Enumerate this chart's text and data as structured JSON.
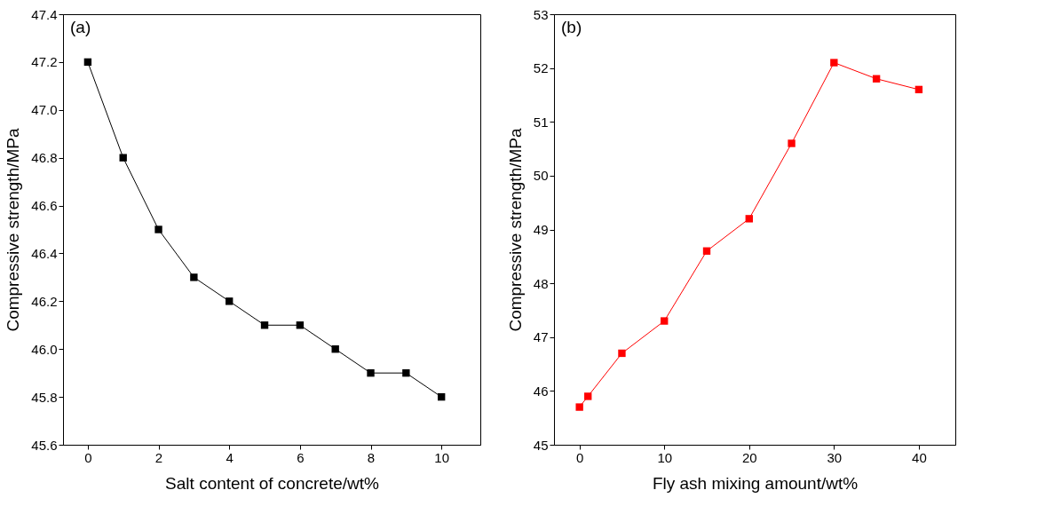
{
  "chart_data": [
    {
      "type": "line",
      "annotations": [
        "(a)"
      ],
      "xlabel": "Salt content of concrete/wt%",
      "ylabel": "Compressive strength/MPa",
      "x": [
        0,
        1,
        2,
        3,
        4,
        5,
        6,
        7,
        8,
        9,
        10
      ],
      "series": [
        {
          "color": "#000000",
          "values": [
            47.2,
            46.8,
            46.5,
            46.3,
            46.2,
            46.1,
            46.1,
            46.0,
            45.9,
            45.9,
            45.8
          ]
        }
      ],
      "xlim": [
        -0.7,
        11.1
      ],
      "xticks": [
        0,
        2,
        4,
        6,
        8,
        10
      ],
      "ylim": [
        45.6,
        47.4
      ],
      "yticks": [
        45.6,
        45.8,
        {
          "value": 46,
          "label": "46.0"
        },
        46.2,
        46.4,
        46.6,
        46.8,
        {
          "value": 47,
          "label": "47.0"
        },
        47.2,
        47.4
      ],
      "marker": "square",
      "line_style": "solid",
      "grid": false
    },
    {
      "type": "line",
      "annotations": [
        "(b)"
      ],
      "xlabel": "Fly ash mixing amount/wt%",
      "ylabel": "Compressive strength/MPa",
      "x": [
        0,
        1,
        5,
        10,
        15,
        20,
        25,
        30,
        35,
        40
      ],
      "series": [
        {
          "color": "#ff0000",
          "values": [
            45.7,
            45.9,
            46.7,
            47.3,
            48.6,
            49.2,
            50.6,
            52.1,
            51.8,
            51.6
          ]
        }
      ],
      "xlim": [
        -3,
        44.3
      ],
      "xticks": [
        0,
        10,
        20,
        30,
        40
      ],
      "ylim": [
        45,
        53
      ],
      "yticks": [
        45,
        46,
        47,
        48,
        49,
        50,
        51,
        52,
        53
      ],
      "marker": "square",
      "line_style": "solid",
      "grid": false
    }
  ]
}
